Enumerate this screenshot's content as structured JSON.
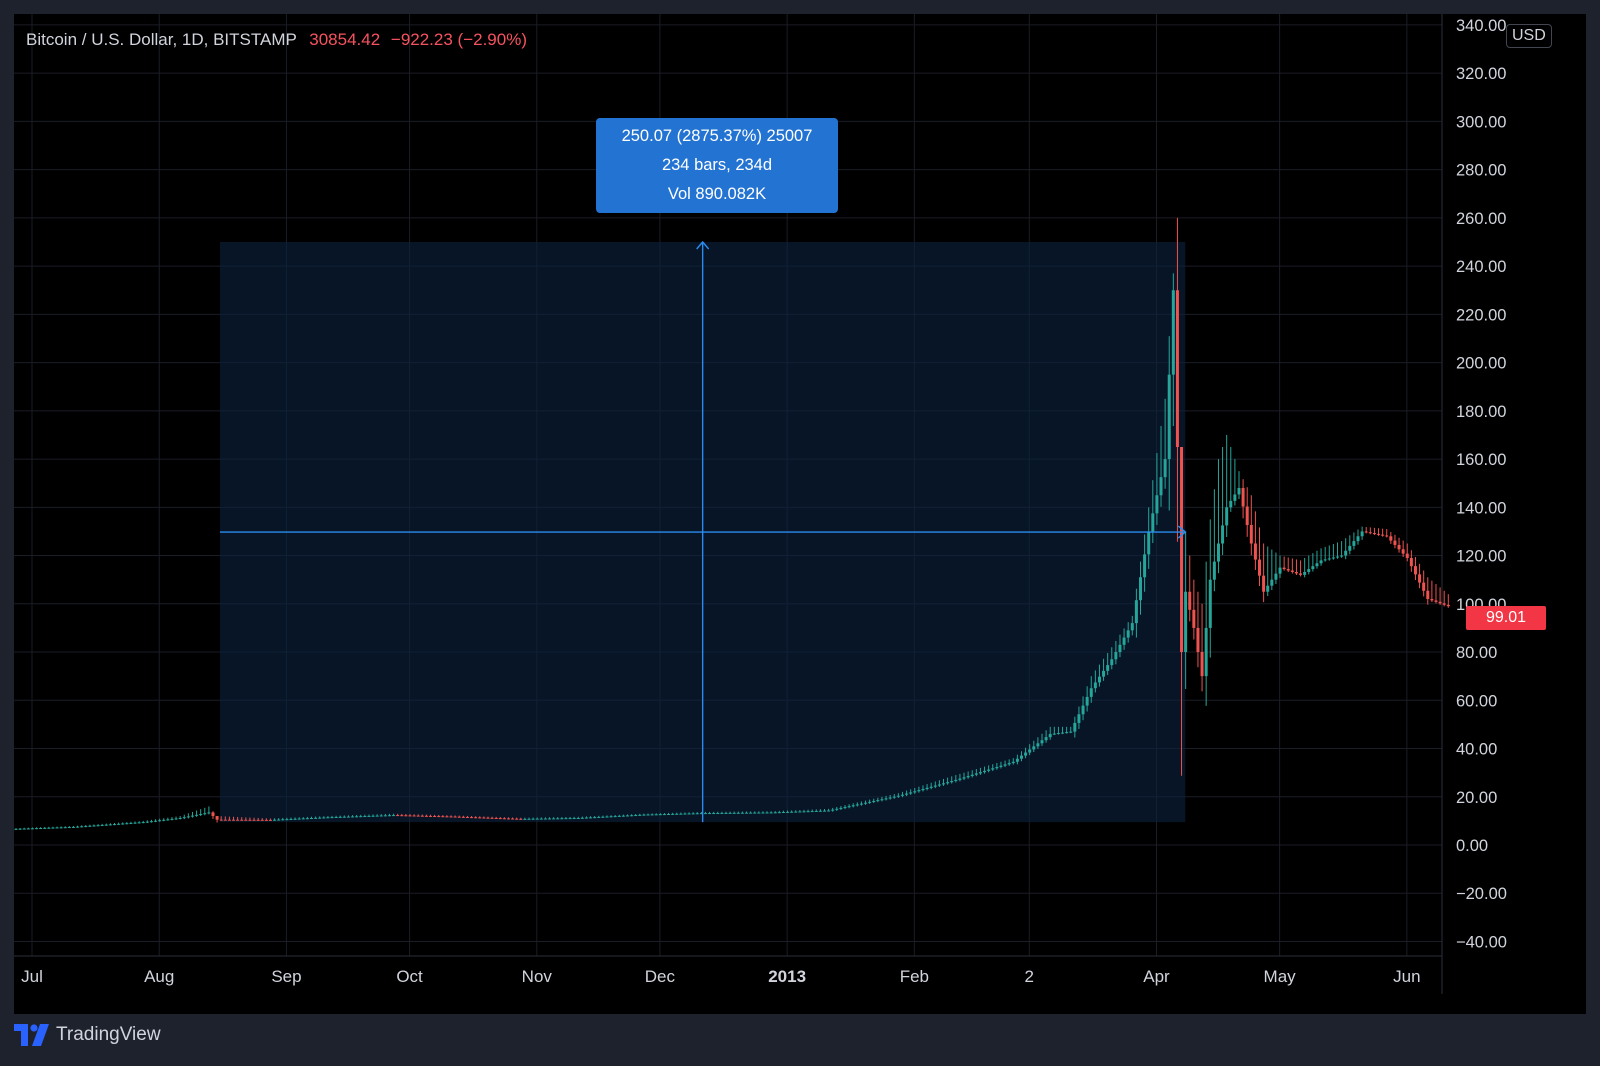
{
  "header": {
    "symbol": "Bitcoin / U.S. Dollar, 1D, BITSTAMP",
    "last_price": "30854.42",
    "change": "−922.23 (−2.90%)"
  },
  "currency_button": "USD",
  "brand": "TradingView",
  "measure": {
    "line1": "250.07 (2875.37%) 25007",
    "line2": "234 bars, 234d",
    "line3": "Vol 890.082K"
  },
  "last_price_tag": "99.01",
  "colors": {
    "background": "#000000",
    "up": "#26a69a",
    "down": "#ef5350",
    "accent": "#2962ff",
    "tooltip": "#2373d2",
    "grid": "#1a1d26",
    "text": "#d1d4dc"
  },
  "icons": [
    "tradingview-logo-icon"
  ],
  "chart_data": {
    "type": "candlestick",
    "title": "Bitcoin / U.S. Dollar, 1D, BITSTAMP",
    "ylim": [
      -40,
      340
    ],
    "y_ticks": [
      "340.00",
      "320.00",
      "300.00",
      "280.00",
      "260.00",
      "240.00",
      "220.00",
      "200.00",
      "180.00",
      "160.00",
      "140.00",
      "120.00",
      "100.00",
      "80.00",
      "60.00",
      "40.00",
      "20.00",
      "0.00",
      "−20.00",
      "−40.00"
    ],
    "x_ticks": [
      "Jul",
      "Aug",
      "Sep",
      "Oct",
      "Nov",
      "Dec",
      "2013",
      "Feb",
      "2",
      "Apr",
      "May",
      "Jun"
    ],
    "grid": true,
    "series": [
      {
        "name": "BTCUSD",
        "dates": [
          "2012-07-01",
          "2012-07-15",
          "2012-08-01",
          "2012-08-10",
          "2012-08-17",
          "2012-08-19",
          "2012-09-01",
          "2012-09-15",
          "2012-10-01",
          "2012-10-15",
          "2012-11-01",
          "2012-11-15",
          "2012-12-01",
          "2012-12-15",
          "2013-01-01",
          "2013-01-15",
          "2013-02-01",
          "2013-02-15",
          "2013-03-01",
          "2013-03-10",
          "2013-03-15",
          "2013-03-20",
          "2013-03-25",
          "2013-03-30",
          "2013-04-03",
          "2013-04-07",
          "2013-04-09",
          "2013-04-10",
          "2013-04-11",
          "2013-04-12",
          "2013-04-14",
          "2013-04-16",
          "2013-04-18",
          "2013-04-20",
          "2013-04-22",
          "2013-04-25",
          "2013-04-28",
          "2013-05-01",
          "2013-05-05",
          "2013-05-10",
          "2013-05-15",
          "2013-05-20",
          "2013-05-25",
          "2013-05-31",
          "2013-06-05",
          "2013-06-10",
          "2013-06-15"
        ],
        "values": [
          6.7,
          7.5,
          9.5,
          11.2,
          13.5,
          10.5,
          10.4,
          11.5,
          12.4,
          11.8,
          10.8,
          11.2,
          12.6,
          13.2,
          13.5,
          14.3,
          20.4,
          27.0,
          34.5,
          46.0,
          47.0,
          65.0,
          77.0,
          92.0,
          130.0,
          160.0,
          230.0,
          165.0,
          80.0,
          105.0,
          90.0,
          70.0,
          110.0,
          125.0,
          140.0,
          148.0,
          125.0,
          105.0,
          115.0,
          112.0,
          118.0,
          120.0,
          130.0,
          128.0,
          119.0,
          102.0,
          99.01
        ],
        "highs": [
          7.0,
          7.9,
          10.0,
          12.0,
          16.0,
          12.0,
          11.0,
          12.0,
          13.0,
          12.3,
          11.3,
          11.7,
          13.0,
          13.7,
          14.0,
          15.0,
          21.5,
          29.0,
          36.0,
          49.0,
          49.0,
          70.0,
          82.0,
          95.0,
          140.0,
          185.0,
          237.0,
          260.0,
          165.0,
          130.0,
          110.0,
          100.0,
          135.0,
          160.0,
          170.0,
          155.0,
          145.0,
          125.0,
          120.0,
          118.0,
          123.0,
          126.0,
          132.0,
          131.0,
          125.0,
          111.0,
          104.0
        ]
      }
    ]
  }
}
